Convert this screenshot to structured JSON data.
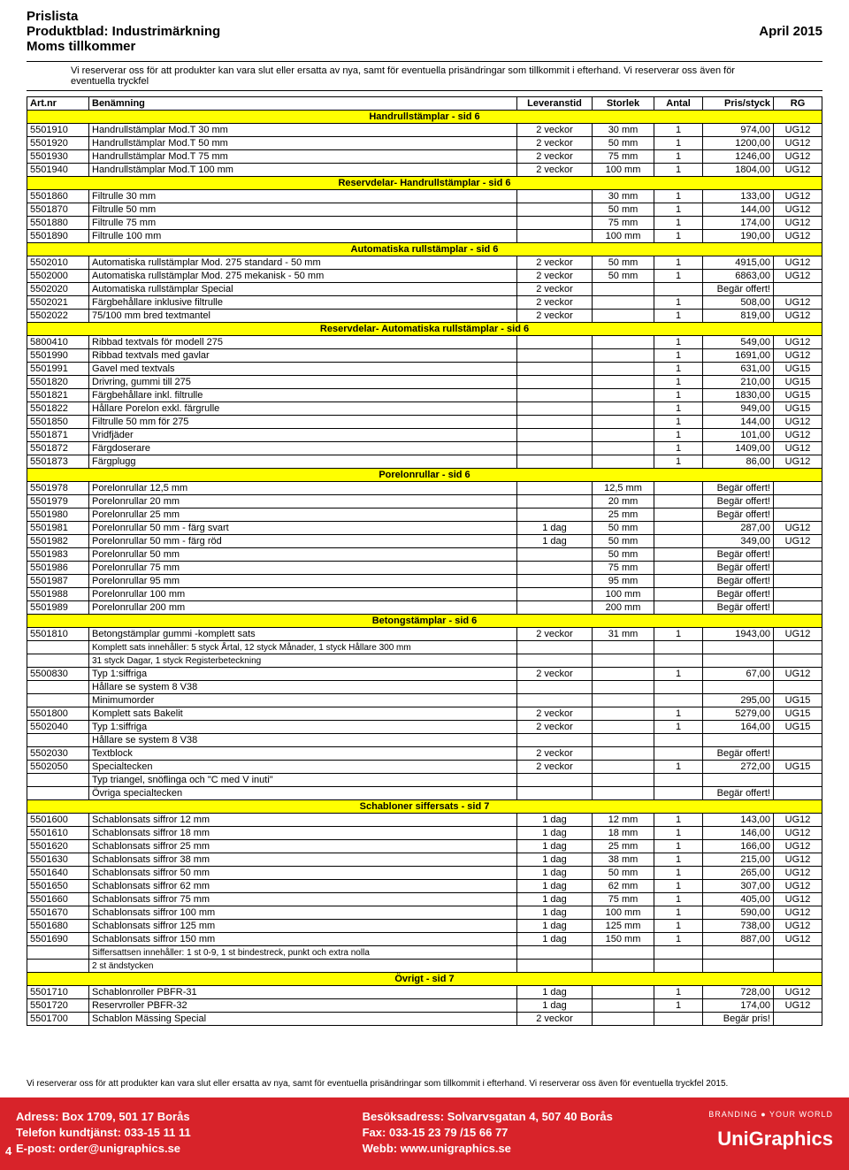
{
  "header": {
    "title1": "Prislista",
    "title2": "Produktblad: Industrimärkning",
    "title3": "Moms tillkommer",
    "date": "April 2015"
  },
  "disclaimer": "Vi reserverar oss för att produkter kan vara slut eller ersatta av nya, samt för eventuella prisändringar som tillkommit i efterhand. Vi reserverar oss även för eventuella tryckfel",
  "columns": [
    "Art.nr",
    "Benämning",
    "Leveranstid",
    "Storlek",
    "Antal",
    "Pris/styck",
    "RG"
  ],
  "sections": [
    {
      "title": "Handrullstämplar - sid 6",
      "rows": [
        {
          "art": "5501910",
          "ben": "Handrullstämplar Mod.T 30 mm",
          "lev": "2 veckor",
          "stor": "30 mm",
          "ant": "1",
          "pris": "974,00",
          "rg": "UG12"
        },
        {
          "art": "5501920",
          "ben": "Handrullstämplar Mod.T 50 mm",
          "lev": "2 veckor",
          "stor": "50 mm",
          "ant": "1",
          "pris": "1200,00",
          "rg": "UG12"
        },
        {
          "art": "5501930",
          "ben": "Handrullstämplar Mod.T 75 mm",
          "lev": "2 veckor",
          "stor": "75 mm",
          "ant": "1",
          "pris": "1246,00",
          "rg": "UG12"
        },
        {
          "art": "5501940",
          "ben": "Handrullstämplar Mod.T 100 mm",
          "lev": "2 veckor",
          "stor": "100 mm",
          "ant": "1",
          "pris": "1804,00",
          "rg": "UG12"
        }
      ]
    },
    {
      "title": "Reservdelar- Handrullstämplar - sid 6",
      "rows": [
        {
          "art": "5501860",
          "ben": "Filtrulle 30 mm",
          "lev": "",
          "stor": "30 mm",
          "ant": "1",
          "pris": "133,00",
          "rg": "UG12"
        },
        {
          "art": "5501870",
          "ben": "Filtrulle 50 mm",
          "lev": "",
          "stor": "50 mm",
          "ant": "1",
          "pris": "144,00",
          "rg": "UG12"
        },
        {
          "art": "5501880",
          "ben": "Filtrulle 75 mm",
          "lev": "",
          "stor": "75 mm",
          "ant": "1",
          "pris": "174,00",
          "rg": "UG12"
        },
        {
          "art": "5501890",
          "ben": "Filtrulle 100 mm",
          "lev": "",
          "stor": "100 mm",
          "ant": "1",
          "pris": "190,00",
          "rg": "UG12"
        }
      ]
    },
    {
      "title": "Automatiska rullstämplar - sid 6",
      "rows": [
        {
          "art": "5502010",
          "ben": "Automatiska rullstämplar Mod. 275 standard - 50 mm",
          "lev": "2 veckor",
          "stor": "50 mm",
          "ant": "1",
          "pris": "4915,00",
          "rg": "UG12"
        },
        {
          "art": "5502000",
          "ben": "Automatiska rullstämplar Mod. 275 mekanisk - 50 mm",
          "lev": "2 veckor",
          "stor": "50 mm",
          "ant": "1",
          "pris": "6863,00",
          "rg": "UG12"
        },
        {
          "art": "5502020",
          "ben": "Automatiska rullstämplar Special",
          "lev": "2 veckor",
          "stor": "",
          "ant": "",
          "pris": "Begär offert!",
          "rg": ""
        },
        {
          "art": "5502021",
          "ben": "Färgbehållare inklusive filtrulle",
          "lev": "2 veckor",
          "stor": "",
          "ant": "1",
          "pris": "508,00",
          "rg": "UG12"
        },
        {
          "art": "5502022",
          "ben": "75/100 mm bred textmantel",
          "lev": "2 veckor",
          "stor": "",
          "ant": "1",
          "pris": "819,00",
          "rg": "UG12"
        }
      ]
    },
    {
      "title": "Reservdelar- Automatiska rullstämplar - sid 6",
      "rows": [
        {
          "art": "5800410",
          "ben": "Ribbad textvals för modell 275",
          "lev": "",
          "stor": "",
          "ant": "1",
          "pris": "549,00",
          "rg": "UG12"
        },
        {
          "art": "5501990",
          "ben": "Ribbad textvals med gavlar",
          "lev": "",
          "stor": "",
          "ant": "1",
          "pris": "1691,00",
          "rg": "UG12"
        },
        {
          "art": "5501991",
          "ben": "Gavel med textvals",
          "lev": "",
          "stor": "",
          "ant": "1",
          "pris": "631,00",
          "rg": "UG15"
        },
        {
          "art": "5501820",
          "ben": "Drivring, gummi till 275",
          "lev": "",
          "stor": "",
          "ant": "1",
          "pris": "210,00",
          "rg": "UG15"
        },
        {
          "art": "5501821",
          "ben": "Färgbehållare inkl. filtrulle",
          "lev": "",
          "stor": "",
          "ant": "1",
          "pris": "1830,00",
          "rg": "UG15"
        },
        {
          "art": "5501822",
          "ben": "Hållare Porelon exkl. färgrulle",
          "lev": "",
          "stor": "",
          "ant": "1",
          "pris": "949,00",
          "rg": "UG15"
        },
        {
          "art": "5501850",
          "ben": "Filtrulle 50 mm för 275",
          "lev": "",
          "stor": "",
          "ant": "1",
          "pris": "144,00",
          "rg": "UG12"
        },
        {
          "art": "5501871",
          "ben": "Vridfjäder",
          "lev": "",
          "stor": "",
          "ant": "1",
          "pris": "101,00",
          "rg": "UG12"
        },
        {
          "art": "5501872",
          "ben": "Färgdoserare",
          "lev": "",
          "stor": "",
          "ant": "1",
          "pris": "1409,00",
          "rg": "UG12"
        },
        {
          "art": "5501873",
          "ben": "Färgplugg",
          "lev": "",
          "stor": "",
          "ant": "1",
          "pris": "86,00",
          "rg": "UG12"
        }
      ]
    },
    {
      "title": "Porelonrullar - sid 6",
      "rows": [
        {
          "art": "5501978",
          "ben": "Porelonrullar 12,5 mm",
          "lev": "",
          "stor": "12,5 mm",
          "ant": "",
          "pris": "Begär offert!",
          "rg": ""
        },
        {
          "art": "5501979",
          "ben": "Porelonrullar 20 mm",
          "lev": "",
          "stor": "20 mm",
          "ant": "",
          "pris": "Begär offert!",
          "rg": ""
        },
        {
          "art": "5501980",
          "ben": "Porelonrullar 25 mm",
          "lev": "",
          "stor": "25 mm",
          "ant": "",
          "pris": "Begär offert!",
          "rg": ""
        },
        {
          "art": "5501981",
          "ben": "Porelonrullar 50 mm - färg svart",
          "lev": "1 dag",
          "stor": "50 mm",
          "ant": "",
          "pris": "287,00",
          "rg": "UG12"
        },
        {
          "art": "5501982",
          "ben": "Porelonrullar 50 mm - färg röd",
          "lev": "1 dag",
          "stor": "50 mm",
          "ant": "",
          "pris": "349,00",
          "rg": "UG12"
        },
        {
          "art": "5501983",
          "ben": "Porelonrullar 50 mm",
          "lev": "",
          "stor": "50 mm",
          "ant": "",
          "pris": "Begär offert!",
          "rg": ""
        },
        {
          "art": "5501986",
          "ben": "Porelonrullar 75 mm",
          "lev": "",
          "stor": "75 mm",
          "ant": "",
          "pris": "Begär offert!",
          "rg": ""
        },
        {
          "art": "5501987",
          "ben": "Porelonrullar 95 mm",
          "lev": "",
          "stor": "95 mm",
          "ant": "",
          "pris": "Begär offert!",
          "rg": ""
        },
        {
          "art": "5501988",
          "ben": "Porelonrullar 100 mm",
          "lev": "",
          "stor": "100 mm",
          "ant": "",
          "pris": "Begär offert!",
          "rg": ""
        },
        {
          "art": "5501989",
          "ben": "Porelonrullar 200 mm",
          "lev": "",
          "stor": "200 mm",
          "ant": "",
          "pris": "Begär offert!",
          "rg": ""
        }
      ]
    },
    {
      "title": "Betongstämplar - sid 6",
      "rows": [
        {
          "art": "5501810",
          "ben": "Betongstämplar gummi -komplett sats",
          "lev": "2 veckor",
          "stor": "31 mm",
          "ant": "1",
          "pris": "1943,00",
          "rg": "UG12"
        },
        {
          "art": "",
          "ben": "Komplett sats innehåller: 5 styck Årtal, 12 styck Månader, 1 styck Hållare 300 mm",
          "lev": "",
          "stor": "",
          "ant": "",
          "pris": "",
          "rg": "",
          "small": true
        },
        {
          "art": "",
          "ben": "31 styck Dagar, 1 styck Registerbeteckning",
          "lev": "",
          "stor": "",
          "ant": "",
          "pris": "",
          "rg": "",
          "small": true
        },
        {
          "art": "5500830",
          "ben": "Typ 1:siffriga",
          "lev": "2 veckor",
          "stor": "",
          "ant": "1",
          "pris": "67,00",
          "rg": "UG12"
        },
        {
          "art": "",
          "ben": "Hållare se system 8 V38",
          "lev": "",
          "stor": "",
          "ant": "",
          "pris": "",
          "rg": ""
        },
        {
          "art": "",
          "ben": "Minimumorder",
          "lev": "",
          "stor": "",
          "ant": "",
          "pris": "295,00",
          "rg": "UG15"
        },
        {
          "art": "5501800",
          "ben": "Komplett sats Bakelit",
          "lev": "2 veckor",
          "stor": "",
          "ant": "1",
          "pris": "5279,00",
          "rg": "UG15"
        },
        {
          "art": "5502040",
          "ben": "Typ 1:siffriga",
          "lev": "2 veckor",
          "stor": "",
          "ant": "1",
          "pris": "164,00",
          "rg": "UG15"
        },
        {
          "art": "",
          "ben": "Hållare se system 8 V38",
          "lev": "",
          "stor": "",
          "ant": "",
          "pris": "",
          "rg": ""
        },
        {
          "art": "5502030",
          "ben": "Textblock",
          "lev": "2 veckor",
          "stor": "",
          "ant": "",
          "pris": "Begär offert!",
          "rg": ""
        },
        {
          "art": "5502050",
          "ben": "Specialtecken",
          "lev": "2 veckor",
          "stor": "",
          "ant": "1",
          "pris": "272,00",
          "rg": "UG15"
        },
        {
          "art": "",
          "ben": "Typ triangel, snöflinga och \"C med V inuti\"",
          "lev": "",
          "stor": "",
          "ant": "",
          "pris": "",
          "rg": ""
        },
        {
          "art": "",
          "ben": "Övriga specialtecken",
          "lev": "",
          "stor": "",
          "ant": "",
          "pris": "Begär offert!",
          "rg": ""
        }
      ]
    },
    {
      "title": "Schabloner siffersats - sid 7",
      "rows": [
        {
          "art": "5501600",
          "ben": "Schablonsats siffror 12 mm",
          "lev": "1 dag",
          "stor": "12 mm",
          "ant": "1",
          "pris": "143,00",
          "rg": "UG12"
        },
        {
          "art": "5501610",
          "ben": "Schablonsats siffror 18 mm",
          "lev": "1 dag",
          "stor": "18 mm",
          "ant": "1",
          "pris": "146,00",
          "rg": "UG12"
        },
        {
          "art": "5501620",
          "ben": "Schablonsats siffror 25 mm",
          "lev": "1 dag",
          "stor": "25 mm",
          "ant": "1",
          "pris": "166,00",
          "rg": "UG12"
        },
        {
          "art": "5501630",
          "ben": "Schablonsats siffror 38 mm",
          "lev": "1 dag",
          "stor": "38 mm",
          "ant": "1",
          "pris": "215,00",
          "rg": "UG12"
        },
        {
          "art": "5501640",
          "ben": "Schablonsats siffror 50 mm",
          "lev": "1 dag",
          "stor": "50 mm",
          "ant": "1",
          "pris": "265,00",
          "rg": "UG12"
        },
        {
          "art": "5501650",
          "ben": "Schablonsats siffror 62 mm",
          "lev": "1 dag",
          "stor": "62 mm",
          "ant": "1",
          "pris": "307,00",
          "rg": "UG12"
        },
        {
          "art": "5501660",
          "ben": "Schablonsats siffror 75 mm",
          "lev": "1 dag",
          "stor": "75 mm",
          "ant": "1",
          "pris": "405,00",
          "rg": "UG12"
        },
        {
          "art": "5501670",
          "ben": "Schablonsats siffror 100 mm",
          "lev": "1 dag",
          "stor": "100 mm",
          "ant": "1",
          "pris": "590,00",
          "rg": "UG12"
        },
        {
          "art": "5501680",
          "ben": "Schablonsats siffror 125 mm",
          "lev": "1 dag",
          "stor": "125 mm",
          "ant": "1",
          "pris": "738,00",
          "rg": "UG12"
        },
        {
          "art": "5501690",
          "ben": "Schablonsats siffror 150 mm",
          "lev": "1 dag",
          "stor": "150 mm",
          "ant": "1",
          "pris": "887,00",
          "rg": "UG12"
        },
        {
          "art": "",
          "ben": "Siffersattsen innehåller: 1 st 0-9, 1 st bindestreck, punkt och extra nolla",
          "lev": "",
          "stor": "",
          "ant": "",
          "pris": "",
          "rg": "",
          "small": true
        },
        {
          "art": "",
          "ben": "2 st ändstycken",
          "lev": "",
          "stor": "",
          "ant": "",
          "pris": "",
          "rg": "",
          "small": true
        }
      ]
    },
    {
      "title": "Övrigt - sid 7",
      "rows": [
        {
          "art": "5501710",
          "ben": "Schablonroller PBFR-31",
          "lev": "1 dag",
          "stor": "",
          "ant": "1",
          "pris": "728,00",
          "rg": "UG12"
        },
        {
          "art": "5501720",
          "ben": "Reservroller PBFR-32",
          "lev": "1 dag",
          "stor": "",
          "ant": "1",
          "pris": "174,00",
          "rg": "UG12"
        },
        {
          "art": "5501700",
          "ben": "Schablon Mässing Special",
          "lev": "2 veckor",
          "stor": "",
          "ant": "",
          "pris": "Begär pris!",
          "rg": ""
        }
      ]
    }
  ],
  "footer_disclaimer": "Vi reserverar oss för att produkter kan vara slut eller ersatta av nya, samt för eventuella prisändringar som tillkommit i efterhand. Vi reserverar oss även för eventuella tryckfel 2015.",
  "footer": {
    "page_num": "4",
    "left": {
      "l1": "Adress: Box 1709, 501 17 Borås",
      "l2": "Telefon kundtjänst: 033-15 11 11",
      "l3": "E-post: order@unigraphics.se"
    },
    "mid": {
      "l1": "Besöksadress: Solvarvsgatan 4, 507 40 Borås",
      "l2": "Fax: 033-15 23 79 /15 66 77",
      "l3": "Webb: www.unigraphics.se"
    },
    "right": {
      "tagline": "BRANDING ● YOUR WORLD",
      "logo": "UniGraphics"
    }
  }
}
